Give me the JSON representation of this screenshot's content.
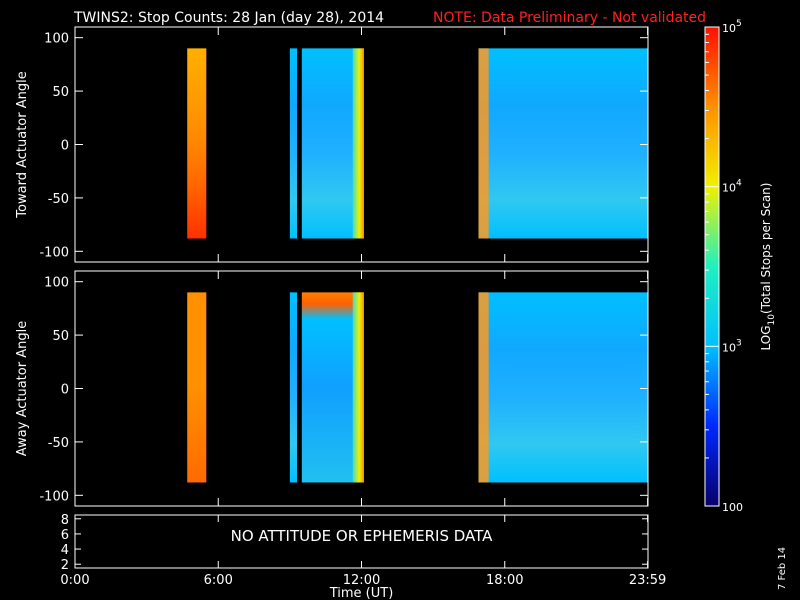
{
  "header": {
    "title": "TWINS2: Stop Counts: 28 Jan (day  28), 2014",
    "note": "NOTE: Data Preliminary - Not validated",
    "note_color": "#ff2020"
  },
  "stamp": "7 Feb 14",
  "chart_data": [
    {
      "type": "heatmap",
      "panel": "toward",
      "ylabel": "Toward Actuator Angle",
      "ylim": [
        -110,
        110
      ],
      "yticks": [
        -100,
        -50,
        0,
        50,
        100
      ],
      "xlim": [
        0,
        24
      ],
      "data_angle_range": [
        -88,
        90
      ],
      "data_intervals_hours": [
        [
          4.7,
          5.5
        ],
        [
          9.0,
          9.3
        ],
        [
          9.5,
          12.1
        ],
        [
          16.9,
          24.0
        ]
      ],
      "colorbar_ref": "colorbar"
    },
    {
      "type": "heatmap",
      "panel": "away",
      "ylabel": "Away Actuator Angle",
      "ylim": [
        -110,
        110
      ],
      "yticks": [
        -100,
        -50,
        0,
        50,
        100
      ],
      "xlim": [
        0,
        24
      ],
      "data_angle_range": [
        -88,
        90
      ],
      "data_intervals_hours": [
        [
          4.7,
          5.5
        ],
        [
          9.0,
          9.3
        ],
        [
          9.5,
          12.1
        ],
        [
          16.9,
          24.0
        ]
      ],
      "colorbar_ref": "colorbar"
    },
    {
      "type": "line",
      "panel": "attitude",
      "ylim": [
        1.5,
        8.5
      ],
      "yticks": [
        2,
        4,
        6,
        8
      ],
      "message": "NO ATTITUDE OR EPHEMERIS DATA",
      "xlabel": "Time (UT)",
      "xticks": [
        0,
        6,
        12,
        18,
        23.983
      ],
      "xtick_labels": [
        "0:00",
        "6:00",
        "12:00",
        "18:00",
        "23:59"
      ]
    }
  ],
  "colorbar": {
    "label": "LOG10(Total Stops per Scan)",
    "scale": "log",
    "min": 100,
    "max": 100000,
    "tick_labels": [
      "10^5",
      "10^4",
      "10^3",
      "100"
    ],
    "colors": [
      "#08006a",
      "#0028ff",
      "#00c0ff",
      "#20f0c0",
      "#f0f000",
      "#ff9000",
      "#ff1000"
    ]
  }
}
